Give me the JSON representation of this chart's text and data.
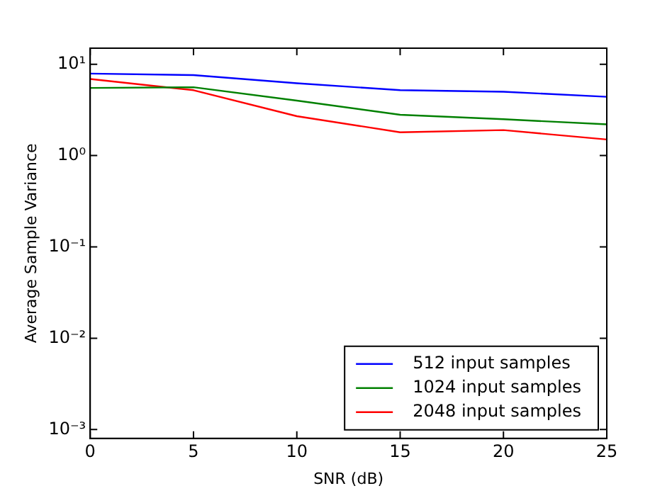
{
  "chart_data": {
    "type": "line",
    "xlabel": "SNR (dB)",
    "ylabel": "Average Sample Variance",
    "x": [
      0,
      5,
      10,
      15,
      20,
      25
    ],
    "series": [
      {
        "name": "512 input samples",
        "color": "#0000ff",
        "values": [
          7.9,
          7.6,
          6.2,
          5.2,
          5.0,
          4.4
        ]
      },
      {
        "name": "1024 input samples",
        "color": "#008000",
        "values": [
          5.5,
          5.6,
          4.0,
          2.8,
          2.5,
          2.2
        ]
      },
      {
        "name": "2048 input samples",
        "color": "#ff0000",
        "values": [
          6.9,
          5.2,
          2.7,
          1.8,
          1.9,
          1.5
        ]
      }
    ],
    "xlim": [
      0,
      25
    ],
    "xticks": [
      0,
      5,
      10,
      15,
      20,
      25
    ],
    "ylim": [
      0.0008,
      15
    ],
    "yticks": [
      {
        "value": 0.001,
        "label": "10⁻³"
      },
      {
        "value": 0.01,
        "label": "10⁻²"
      },
      {
        "value": 0.1,
        "label": "10⁻¹"
      },
      {
        "value": 1,
        "label": "10⁰"
      },
      {
        "value": 10,
        "label": "10¹"
      }
    ],
    "log": "y",
    "grid": false,
    "legend": "bottom right",
    "marker": "none",
    "line_style": "solid"
  }
}
